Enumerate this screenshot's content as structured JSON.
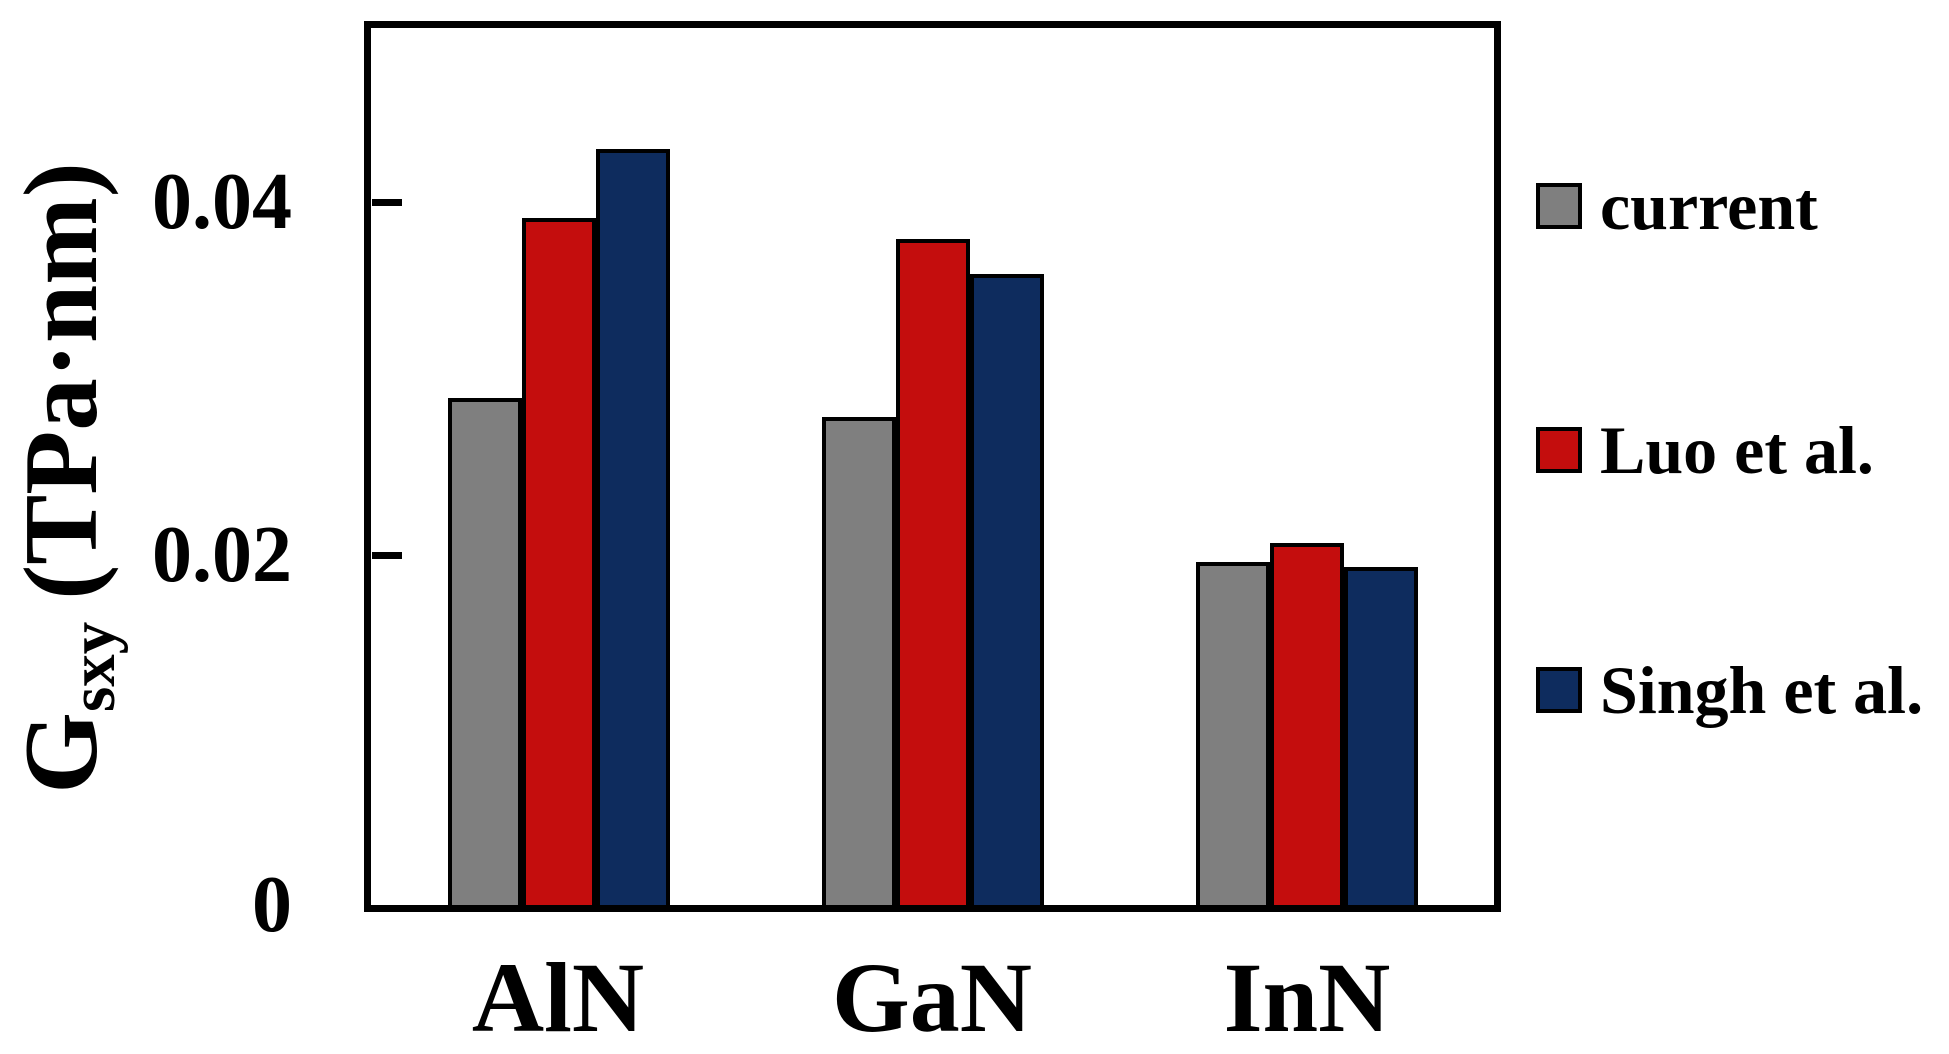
{
  "chart_data": {
    "type": "bar",
    "title": "",
    "categories": [
      "AlN",
      "GaN",
      "InN"
    ],
    "series": [
      {
        "name": "current",
        "color": "#7f7f7f",
        "values": [
          0.0289,
          0.0278,
          0.0196
        ]
      },
      {
        "name": "Luo et al.",
        "color": "#c40d0d",
        "values": [
          0.0391,
          0.0379,
          0.0207
        ]
      },
      {
        "name": "Singh et al.",
        "color": "#0e2c5e",
        "values": [
          0.043,
          0.0359,
          0.0193
        ]
      }
    ],
    "ylabel": {
      "main": "G",
      "sub": "sxy",
      "unit": "(TPa·nm)"
    },
    "yticks": [
      0,
      0.02,
      0.04
    ],
    "ytick_labels": [
      "0",
      "0.02",
      "0.04"
    ],
    "ylim": [
      0,
      0.05
    ],
    "xlabel": "",
    "grid": false,
    "legend_position": "right-outside",
    "frame_color": "#000000",
    "background_color": "#ffffff"
  }
}
